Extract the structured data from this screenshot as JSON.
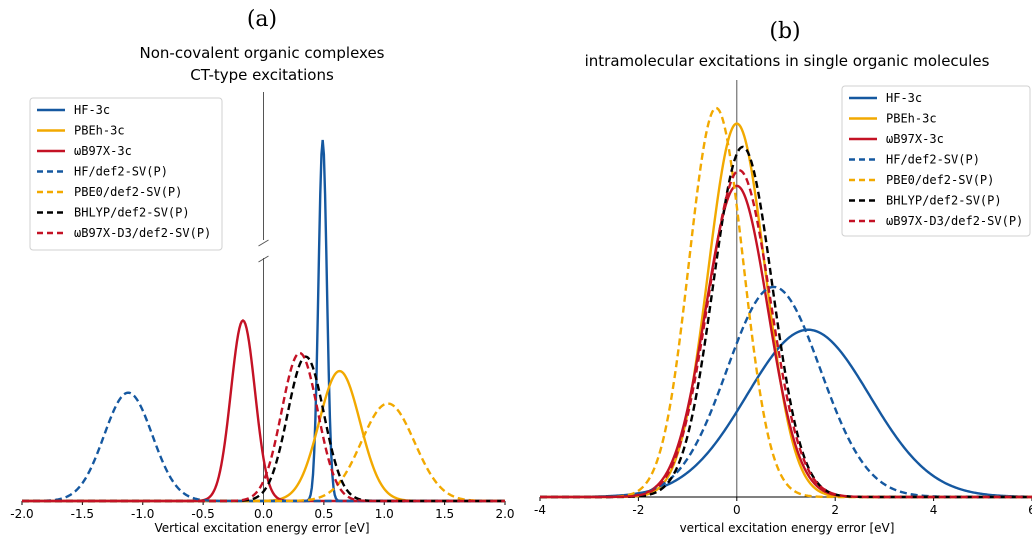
{
  "chart_data": [
    {
      "type": "line",
      "panel_label": "(a)",
      "title_lines": [
        "Non-covalent organic complexes",
        "CT-type excitations"
      ],
      "xlabel": "Vertical excitation energy error [eV]",
      "ylabel": "",
      "xlim": [
        -2.0,
        2.0
      ],
      "x_ticks": [
        "-2.0",
        "-1.5",
        "-1.0",
        "-0.5",
        "0.0",
        "0.5",
        "1.0",
        "1.5",
        "2.0"
      ],
      "y_axis_break": true,
      "grid": false,
      "legend_position": "top-left",
      "series": [
        {
          "name": "HF-3c",
          "color": "#1558a0",
          "dash": "solid",
          "mean": 0.49,
          "sigma": 0.035,
          "peak": 1.0
        },
        {
          "name": "PBEh-3c",
          "color": "#f2a900",
          "dash": "solid",
          "mean": 0.63,
          "sigma": 0.17,
          "peak": 0.36
        },
        {
          "name": "ωB97X-3c",
          "color": "#c41225",
          "dash": "solid",
          "mean": -0.17,
          "sigma": 0.1,
          "peak": 0.5
        },
        {
          "name": "HF/def2-SV(P)",
          "color": "#1558a0",
          "dash": "dashed",
          "mean": -1.12,
          "sigma": 0.2,
          "peak": 0.3
        },
        {
          "name": "PBE0/def2-SV(P)",
          "color": "#f2a900",
          "dash": "dashed",
          "mean": 1.03,
          "sigma": 0.22,
          "peak": 0.27
        },
        {
          "name": "BHLYP/def2-SV(P)",
          "color": "#000000",
          "dash": "dashed",
          "mean": 0.35,
          "sigma": 0.15,
          "peak": 0.4
        },
        {
          "name": "ωB97X-D3/def2-SV(P)",
          "color": "#c41225",
          "dash": "dashed",
          "mean": 0.3,
          "sigma": 0.15,
          "peak": 0.41
        }
      ]
    },
    {
      "type": "line",
      "panel_label": "(b)",
      "title_lines": [
        "intramolecular excitations in single organic molecules"
      ],
      "xlabel": "vertical excitation energy error [eV]",
      "ylabel": "",
      "xlim": [
        -4,
        6
      ],
      "x_ticks": [
        "-4",
        "-2",
        "0",
        "2",
        "4",
        "6"
      ],
      "grid": false,
      "legend_position": "top-right",
      "series": [
        {
          "name": "HF-3c",
          "color": "#1558a0",
          "dash": "solid",
          "mean": 1.45,
          "sigma": 1.25,
          "peak": 0.43
        },
        {
          "name": "PBEh-3c",
          "color": "#f2a900",
          "dash": "solid",
          "mean": 0.0,
          "sigma": 0.58,
          "peak": 0.96
        },
        {
          "name": "ωB97X-3c",
          "color": "#c41225",
          "dash": "solid",
          "mean": 0.0,
          "sigma": 0.63,
          "peak": 0.8
        },
        {
          "name": "HF/def2-SV(P)",
          "color": "#1558a0",
          "dash": "dashed",
          "mean": 0.75,
          "sigma": 0.95,
          "peak": 0.54
        },
        {
          "name": "PBE0/def2-SV(P)",
          "color": "#f2a900",
          "dash": "dashed",
          "mean": -0.42,
          "sigma": 0.55,
          "peak": 1.0
        },
        {
          "name": "BHLYP/def2-SV(P)",
          "color": "#000000",
          "dash": "dashed",
          "mean": 0.12,
          "sigma": 0.6,
          "peak": 0.9
        },
        {
          "name": "ωB97X-D3/def2-SV(P)",
          "color": "#c41225",
          "dash": "dashed",
          "mean": 0.05,
          "sigma": 0.63,
          "peak": 0.84
        }
      ]
    }
  ]
}
